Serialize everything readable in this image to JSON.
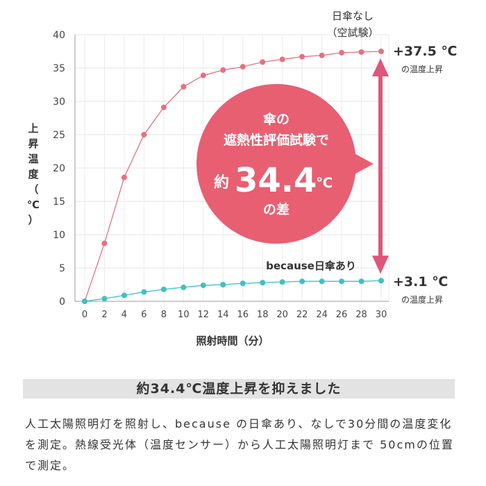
{
  "chart_data": {
    "type": "line",
    "x": [
      0,
      2,
      4,
      6,
      8,
      10,
      12,
      14,
      16,
      18,
      20,
      22,
      24,
      26,
      28,
      30
    ],
    "xticks": [
      "0",
      "2",
      "4",
      "6",
      "8",
      "10",
      "12",
      "14",
      "16",
      "18",
      "20",
      "22",
      "24",
      "26",
      "28",
      "30"
    ],
    "yticks": [
      "0",
      "5",
      "10",
      "15",
      "20",
      "25",
      "30",
      "35",
      "40"
    ],
    "xlim": [
      0,
      30
    ],
    "ylim": [
      0,
      40
    ],
    "xlabel": "照射時間（分）",
    "ylabel": "上昇温度（℃）",
    "grid": true,
    "series": [
      {
        "name_lines": [
          "日傘なし",
          "（空試験）"
        ],
        "color": "#e8707f",
        "values": [
          0,
          8.7,
          18.6,
          25.0,
          29.1,
          32.2,
          33.9,
          34.7,
          35.2,
          35.9,
          36.3,
          36.7,
          36.9,
          37.3,
          37.4,
          37.5
        ]
      },
      {
        "name": "because日傘あり",
        "color": "#3ec0c8",
        "values": [
          0,
          0.4,
          0.9,
          1.4,
          1.8,
          2.1,
          2.4,
          2.5,
          2.7,
          2.8,
          2.9,
          3.0,
          3.0,
          3.0,
          3.0,
          3.1
        ]
      }
    ],
    "annotations": {
      "top_value": "+37.5 ℃",
      "top_sub": "の温度上昇",
      "bottom_value": "+3.1 ℃",
      "bottom_sub": "の温度上昇",
      "bubble_line1": "傘の",
      "bubble_line2": "遮熱性評価試験で",
      "bubble_prefix": "約",
      "bubble_number": "34.4",
      "bubble_unit": "℃",
      "bubble_line4": "の差"
    },
    "colors": {
      "bubble": "#e85f72",
      "arrow": "#e0557a"
    }
  },
  "headline": "約34.4℃温度上昇を抑えました",
  "description": "人工太陽照明灯を照射し、because の日傘あり、なしで30分間の温度変化を測定。熱線受光体（温度センサー）から人工太陽照明灯まで 50cmの位置で測定。"
}
